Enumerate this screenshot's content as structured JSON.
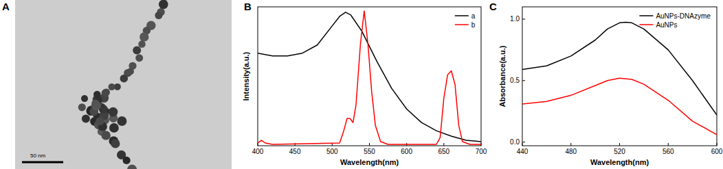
{
  "panel_labels": [
    "A",
    "B",
    "C"
  ],
  "image": {
    "scale_bar": "50 nm"
  },
  "chart_data": [
    {
      "type": "line",
      "x_label": "Wavelength(nm)",
      "y_label": "Intensity(a.u.)",
      "xlim": [
        400,
        700
      ],
      "xticks": [
        400,
        450,
        500,
        550,
        600,
        650,
        700
      ],
      "ylim": [
        0,
        1.02
      ],
      "tick_labels": "x",
      "legend": "upper right",
      "series": [
        {
          "name": "a",
          "color": "#000000",
          "x": [
            400,
            420,
            440,
            460,
            480,
            500,
            510,
            518,
            525,
            540,
            560,
            580,
            600,
            620,
            640,
            660,
            680,
            700
          ],
          "values": [
            0.68,
            0.66,
            0.66,
            0.68,
            0.74,
            0.88,
            0.95,
            0.98,
            0.96,
            0.84,
            0.62,
            0.42,
            0.27,
            0.17,
            0.11,
            0.07,
            0.04,
            0.03
          ]
        },
        {
          "name": "b",
          "color": "#ff0000",
          "x": [
            400,
            405,
            410,
            420,
            510,
            515,
            520,
            524,
            528,
            532,
            538,
            543,
            548,
            553,
            558,
            565,
            575,
            640,
            645,
            650,
            655,
            660,
            665,
            670,
            675,
            685,
            700
          ],
          "values": [
            0.02,
            0.04,
            0.02,
            0.01,
            0.02,
            0.1,
            0.2,
            0.2,
            0.17,
            0.3,
            0.75,
            0.99,
            0.75,
            0.4,
            0.15,
            0.03,
            0.01,
            0.01,
            0.06,
            0.35,
            0.52,
            0.55,
            0.45,
            0.15,
            0.03,
            0.01,
            0.01
          ]
        }
      ]
    },
    {
      "type": "line",
      "x_label": "Wavelength(nm)",
      "y_label": "Absorbance(a.u.)",
      "xlim": [
        440,
        600
      ],
      "xticks": [
        440,
        480,
        520,
        560,
        600
      ],
      "ylim": [
        -0.03,
        1.1
      ],
      "yticks": [
        {
          "value": 0,
          "label": "0.0"
        },
        {
          "value": 0.5,
          "label": "0.5"
        },
        {
          "value": 1,
          "label": "1.0"
        }
      ],
      "legend": "upper right",
      "series": [
        {
          "name": "AuNPs-DNAzyme",
          "color": "#000000",
          "x": [
            440,
            460,
            480,
            500,
            510,
            520,
            525,
            530,
            540,
            560,
            580,
            600
          ],
          "values": [
            0.59,
            0.62,
            0.7,
            0.83,
            0.92,
            0.97,
            0.975,
            0.97,
            0.92,
            0.75,
            0.5,
            0.22
          ]
        },
        {
          "name": "AuNPs",
          "color": "#ff0000",
          "x": [
            440,
            460,
            480,
            500,
            510,
            520,
            530,
            540,
            560,
            580,
            600
          ],
          "values": [
            0.31,
            0.33,
            0.38,
            0.46,
            0.5,
            0.52,
            0.51,
            0.47,
            0.34,
            0.17,
            0.06
          ]
        }
      ]
    }
  ]
}
